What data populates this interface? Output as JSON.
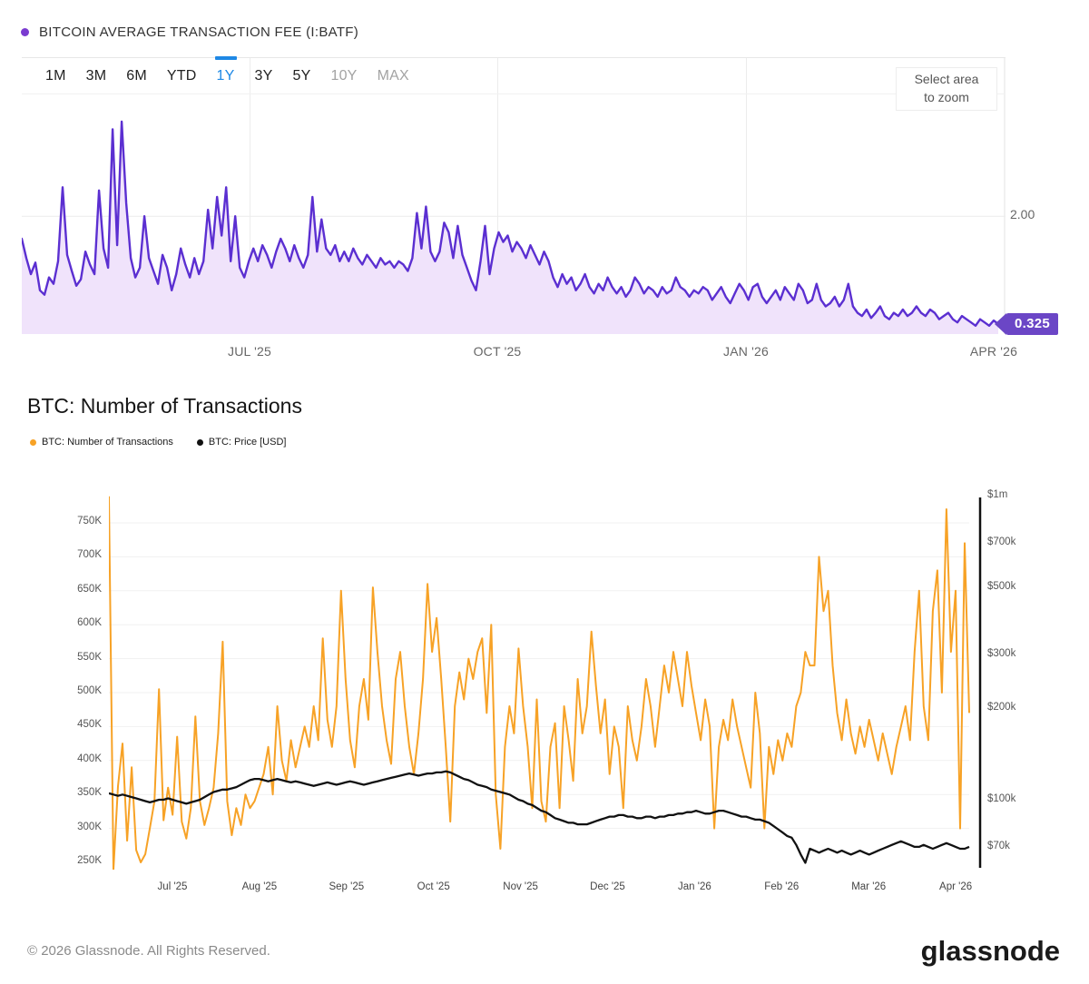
{
  "fee_chart": {
    "title": "BITCOIN AVERAGE TRANSACTION FEE (I:BATF)",
    "range_buttons": [
      {
        "label": "1M",
        "state": "normal"
      },
      {
        "label": "3M",
        "state": "normal"
      },
      {
        "label": "6M",
        "state": "normal"
      },
      {
        "label": "YTD",
        "state": "normal"
      },
      {
        "label": "1Y",
        "state": "active"
      },
      {
        "label": "3Y",
        "state": "normal"
      },
      {
        "label": "5Y",
        "state": "normal"
      },
      {
        "label": "10Y",
        "state": "disabled"
      },
      {
        "label": "MAX",
        "state": "disabled"
      }
    ],
    "zoom_hint_line1": "Select area",
    "zoom_hint_line2": "to zoom",
    "y_tick_label": "2.00",
    "last_value_label": "0.325",
    "x_tick_labels": [
      "JUL '25",
      "OCT '25",
      "JAN '26",
      "APR '26"
    ],
    "accent_color": "#5b2fd1",
    "badge_color": "#6b46c6",
    "active_tab_color": "#1e88e5"
  },
  "tx_chart": {
    "title": "BTC: Number of Transactions",
    "legend": [
      {
        "label": "BTC: Number of Transactions",
        "color": "#f7a226"
      },
      {
        "label": "BTC: Price [USD]",
        "color": "#111111"
      }
    ],
    "left_tick_labels": [
      "750K",
      "700K",
      "650K",
      "600K",
      "550K",
      "500K",
      "450K",
      "400K",
      "350K",
      "300K",
      "250K"
    ],
    "right_tick_labels": [
      "$1m",
      "$700k",
      "$500k",
      "$300k",
      "$200k",
      "$100k",
      "$70k"
    ],
    "x_tick_labels": [
      "Jul '25",
      "Aug '25",
      "Sep '25",
      "Oct '25",
      "Nov '25",
      "Dec '25",
      "Jan '26",
      "Feb '26",
      "Mar '26",
      "Apr '26"
    ]
  },
  "footer": {
    "copyright": "© 2026 Glassnode. All Rights Reserved.",
    "brand": "glassnode"
  },
  "chart_data": [
    {
      "type": "area",
      "title": "Bitcoin Average Transaction Fee (I:BATF)",
      "range_selected": "1Y",
      "x_range": [
        "Apr '25",
        "Apr '26"
      ],
      "x_tick_labels": [
        "JUL '25",
        "OCT '25",
        "JAN '26",
        "APR '26"
      ],
      "ylim": [
        0.17,
        4.47
      ],
      "gridline_y": [
        2.0
      ],
      "y_tick_labels": [
        "2.00"
      ],
      "last_value": 0.325,
      "color": "#5b2fd1",
      "fill": "#f0e3fb",
      "values": [
        1.65,
        1.35,
        1.1,
        1.28,
        0.85,
        0.78,
        1.05,
        0.95,
        1.3,
        2.45,
        1.4,
        1.15,
        0.92,
        1.02,
        1.45,
        1.25,
        1.1,
        2.4,
        1.5,
        1.2,
        3.35,
        1.55,
        3.47,
        2.2,
        1.35,
        1.05,
        1.2,
        2.0,
        1.35,
        1.15,
        0.95,
        1.4,
        1.2,
        0.85,
        1.1,
        1.5,
        1.25,
        1.05,
        1.35,
        1.1,
        1.3,
        2.1,
        1.5,
        2.3,
        1.7,
        2.45,
        1.3,
        2.0,
        1.2,
        1.05,
        1.3,
        1.5,
        1.3,
        1.55,
        1.4,
        1.2,
        1.45,
        1.65,
        1.5,
        1.3,
        1.55,
        1.35,
        1.2,
        1.4,
        2.3,
        1.45,
        1.95,
        1.5,
        1.4,
        1.55,
        1.3,
        1.45,
        1.3,
        1.5,
        1.35,
        1.25,
        1.4,
        1.3,
        1.2,
        1.35,
        1.25,
        1.3,
        1.2,
        1.3,
        1.25,
        1.15,
        1.35,
        2.05,
        1.5,
        2.15,
        1.45,
        1.3,
        1.45,
        1.9,
        1.75,
        1.35,
        1.85,
        1.4,
        1.2,
        1.0,
        0.85,
        1.3,
        1.85,
        1.1,
        1.5,
        1.75,
        1.6,
        1.7,
        1.45,
        1.6,
        1.5,
        1.35,
        1.55,
        1.4,
        1.25,
        1.45,
        1.3,
        1.05,
        0.9,
        1.1,
        0.95,
        1.05,
        0.85,
        0.95,
        1.1,
        0.9,
        0.8,
        0.95,
        0.85,
        1.05,
        0.9,
        0.8,
        0.9,
        0.75,
        0.85,
        1.05,
        0.95,
        0.8,
        0.9,
        0.85,
        0.75,
        0.9,
        0.8,
        0.85,
        1.05,
        0.9,
        0.85,
        0.75,
        0.85,
        0.8,
        0.9,
        0.85,
        0.7,
        0.8,
        0.9,
        0.75,
        0.65,
        0.8,
        0.95,
        0.85,
        0.7,
        0.9,
        0.95,
        0.75,
        0.65,
        0.75,
        0.85,
        0.7,
        0.9,
        0.8,
        0.7,
        0.95,
        0.85,
        0.65,
        0.7,
        0.95,
        0.7,
        0.6,
        0.65,
        0.75,
        0.6,
        0.7,
        0.95,
        0.6,
        0.5,
        0.45,
        0.55,
        0.42,
        0.5,
        0.6,
        0.45,
        0.4,
        0.5,
        0.45,
        0.55,
        0.45,
        0.5,
        0.6,
        0.5,
        0.45,
        0.55,
        0.5,
        0.4,
        0.45,
        0.5,
        0.4,
        0.35,
        0.45,
        0.4,
        0.35,
        0.3,
        0.4,
        0.35,
        0.3,
        0.38,
        0.325
      ]
    },
    {
      "type": "line",
      "title": "BTC: Number of Transactions",
      "x_months": [
        "Jul '25",
        "Aug '25",
        "Sep '25",
        "Oct '25",
        "Nov '25",
        "Dec '25",
        "Jan '26",
        "Feb '26",
        "Mar '26",
        "Apr '26"
      ],
      "left_axis": {
        "unit": "transactions (K)",
        "ticks_k": [
          750,
          700,
          650,
          600,
          550,
          500,
          450,
          400,
          350,
          300,
          250
        ],
        "ylim_k": [
          239.3,
          790.1
        ],
        "scale": "linear"
      },
      "right_axis": {
        "unit": "USD (k)",
        "ticks_k": [
          1000,
          700,
          500,
          300,
          200,
          100,
          70
        ],
        "ylim_k": [
          58.9,
          1000
        ],
        "scale": "log"
      },
      "series": [
        {
          "name": "BTC: Number of Transactions",
          "axis": "left",
          "color": "#f7a226",
          "unit": "K",
          "values": [
            789,
            239,
            362,
            425,
            282,
            390,
            268,
            250,
            262,
            300,
            340,
            505,
            312,
            360,
            320,
            435,
            310,
            285,
            330,
            465,
            340,
            305,
            330,
            360,
            440,
            575,
            340,
            290,
            330,
            305,
            350,
            330,
            340,
            360,
            380,
            420,
            350,
            480,
            400,
            370,
            430,
            390,
            420,
            450,
            420,
            480,
            430,
            580,
            460,
            420,
            480,
            650,
            520,
            430,
            390,
            480,
            520,
            460,
            655,
            560,
            480,
            430,
            395,
            520,
            560,
            480,
            420,
            380,
            440,
            520,
            660,
            560,
            610,
            520,
            420,
            310,
            480,
            530,
            490,
            550,
            520,
            560,
            580,
            470,
            600,
            350,
            270,
            420,
            480,
            440,
            565,
            480,
            420,
            330,
            490,
            340,
            310,
            420,
            455,
            330,
            480,
            430,
            370,
            520,
            440,
            480,
            590,
            510,
            440,
            490,
            380,
            450,
            420,
            330,
            480,
            430,
            400,
            450,
            520,
            480,
            420,
            480,
            540,
            500,
            560,
            520,
            480,
            560,
            510,
            470,
            430,
            490,
            450,
            300,
            420,
            460,
            430,
            490,
            450,
            420,
            390,
            360,
            500,
            440,
            300,
            420,
            380,
            430,
            400,
            440,
            420,
            480,
            500,
            560,
            540,
            540,
            700,
            620,
            650,
            540,
            470,
            430,
            490,
            440,
            410,
            450,
            420,
            460,
            430,
            400,
            440,
            410,
            380,
            420,
            450,
            480,
            430,
            560,
            650,
            480,
            430,
            620,
            680,
            500,
            770,
            560,
            650,
            300,
            720,
            470
          ]
        },
        {
          "name": "BTC: Price [USD]",
          "axis": "right",
          "color": "#111111",
          "unit": "USD (k)",
          "values": [
            105,
            104,
            103,
            104,
            103,
            102,
            101,
            100,
            99,
            98,
            99,
            100,
            100,
            101,
            100,
            99,
            98,
            97,
            98,
            99,
            100,
            102,
            104,
            106,
            107,
            108,
            108,
            109,
            110,
            112,
            114,
            116,
            117,
            117,
            116,
            115,
            116,
            117,
            116,
            115,
            114,
            115,
            114,
            113,
            112,
            111,
            112,
            113,
            114,
            113,
            112,
            113,
            114,
            115,
            114,
            113,
            112,
            113,
            114,
            115,
            116,
            117,
            118,
            119,
            120,
            121,
            122,
            121,
            120,
            121,
            122,
            122,
            123,
            123,
            124,
            123,
            121,
            119,
            117,
            116,
            114,
            112,
            111,
            110,
            108,
            107,
            106,
            105,
            104,
            102,
            100,
            99,
            97,
            96,
            94,
            92,
            91,
            89,
            87,
            86,
            85,
            84,
            84,
            83,
            83,
            83,
            84,
            85,
            86,
            87,
            88,
            88,
            89,
            89,
            88,
            88,
            87,
            87,
            88,
            88,
            87,
            88,
            88,
            89,
            89,
            90,
            90,
            91,
            91,
            92,
            91,
            90,
            90,
            91,
            92,
            92,
            91,
            90,
            89,
            88,
            88,
            87,
            86,
            86,
            85,
            84,
            82,
            80,
            78,
            76,
            75,
            71,
            66,
            62,
            69,
            68,
            67,
            68,
            69,
            68,
            67,
            68,
            67,
            66,
            67,
            68,
            67,
            66,
            67,
            68,
            69,
            70,
            71,
            72,
            73,
            72,
            71,
            70,
            70,
            71,
            70,
            69,
            70,
            71,
            72,
            71,
            70,
            69,
            69,
            70
          ]
        }
      ]
    }
  ]
}
